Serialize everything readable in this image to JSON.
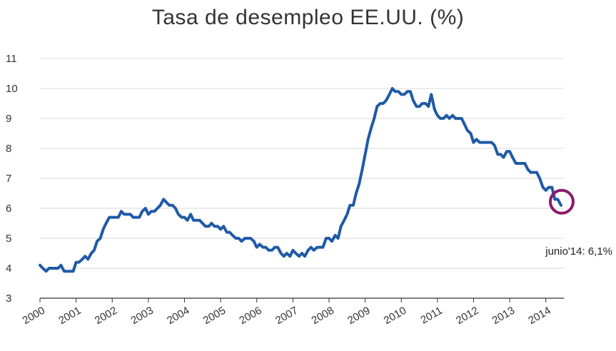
{
  "chart_data": {
    "type": "line",
    "title": "Tasa de desempleo EE.UU. (%)",
    "xlabel": "",
    "ylabel": "",
    "ylim": [
      3,
      11
    ],
    "xlim": [
      2000.0,
      2014.5
    ],
    "y_ticks": [
      "3",
      "4",
      "5",
      "6",
      "7",
      "8",
      "9",
      "10",
      "11"
    ],
    "x_ticks": [
      "2000",
      "2001",
      "2002",
      "2003",
      "2004",
      "2005",
      "2006",
      "2007",
      "2008",
      "2009",
      "2010",
      "2011",
      "2012",
      "2013",
      "2014"
    ],
    "grid": true,
    "series": [
      {
        "color": "#1f5aa6",
        "points": [
          [
            2000.0,
            4.1
          ],
          [
            2000.08,
            4.0
          ],
          [
            2000.17,
            3.9
          ],
          [
            2000.25,
            4.0
          ],
          [
            2000.33,
            4.0
          ],
          [
            2000.42,
            4.0
          ],
          [
            2000.5,
            4.0
          ],
          [
            2000.58,
            4.1
          ],
          [
            2000.67,
            3.9
          ],
          [
            2000.75,
            3.9
          ],
          [
            2000.83,
            3.9
          ],
          [
            2000.92,
            3.9
          ],
          [
            2001.0,
            4.2
          ],
          [
            2001.08,
            4.2
          ],
          [
            2001.17,
            4.3
          ],
          [
            2001.25,
            4.4
          ],
          [
            2001.33,
            4.3
          ],
          [
            2001.42,
            4.5
          ],
          [
            2001.5,
            4.6
          ],
          [
            2001.58,
            4.9
          ],
          [
            2001.67,
            5.0
          ],
          [
            2001.75,
            5.3
          ],
          [
            2001.83,
            5.5
          ],
          [
            2001.92,
            5.7
          ],
          [
            2002.0,
            5.7
          ],
          [
            2002.08,
            5.7
          ],
          [
            2002.17,
            5.7
          ],
          [
            2002.25,
            5.9
          ],
          [
            2002.33,
            5.8
          ],
          [
            2002.42,
            5.8
          ],
          [
            2002.5,
            5.8
          ],
          [
            2002.58,
            5.7
          ],
          [
            2002.67,
            5.7
          ],
          [
            2002.75,
            5.7
          ],
          [
            2002.83,
            5.9
          ],
          [
            2002.92,
            6.0
          ],
          [
            2003.0,
            5.8
          ],
          [
            2003.08,
            5.9
          ],
          [
            2003.17,
            5.9
          ],
          [
            2003.25,
            6.0
          ],
          [
            2003.33,
            6.1
          ],
          [
            2003.42,
            6.3
          ],
          [
            2003.5,
            6.2
          ],
          [
            2003.58,
            6.1
          ],
          [
            2003.67,
            6.1
          ],
          [
            2003.75,
            6.0
          ],
          [
            2003.83,
            5.8
          ],
          [
            2003.92,
            5.7
          ],
          [
            2004.0,
            5.7
          ],
          [
            2004.08,
            5.6
          ],
          [
            2004.17,
            5.8
          ],
          [
            2004.25,
            5.6
          ],
          [
            2004.33,
            5.6
          ],
          [
            2004.42,
            5.6
          ],
          [
            2004.5,
            5.5
          ],
          [
            2004.58,
            5.4
          ],
          [
            2004.67,
            5.4
          ],
          [
            2004.75,
            5.5
          ],
          [
            2004.83,
            5.4
          ],
          [
            2004.92,
            5.4
          ],
          [
            2005.0,
            5.3
          ],
          [
            2005.08,
            5.4
          ],
          [
            2005.17,
            5.2
          ],
          [
            2005.25,
            5.2
          ],
          [
            2005.33,
            5.1
          ],
          [
            2005.42,
            5.0
          ],
          [
            2005.5,
            5.0
          ],
          [
            2005.58,
            4.9
          ],
          [
            2005.67,
            5.0
          ],
          [
            2005.75,
            5.0
          ],
          [
            2005.83,
            5.0
          ],
          [
            2005.92,
            4.9
          ],
          [
            2006.0,
            4.7
          ],
          [
            2006.08,
            4.8
          ],
          [
            2006.17,
            4.7
          ],
          [
            2006.25,
            4.7
          ],
          [
            2006.33,
            4.6
          ],
          [
            2006.42,
            4.6
          ],
          [
            2006.5,
            4.7
          ],
          [
            2006.58,
            4.7
          ],
          [
            2006.67,
            4.5
          ],
          [
            2006.75,
            4.4
          ],
          [
            2006.83,
            4.5
          ],
          [
            2006.92,
            4.4
          ],
          [
            2007.0,
            4.6
          ],
          [
            2007.08,
            4.5
          ],
          [
            2007.17,
            4.4
          ],
          [
            2007.25,
            4.5
          ],
          [
            2007.33,
            4.4
          ],
          [
            2007.42,
            4.6
          ],
          [
            2007.5,
            4.7
          ],
          [
            2007.58,
            4.6
          ],
          [
            2007.67,
            4.7
          ],
          [
            2007.75,
            4.7
          ],
          [
            2007.83,
            4.7
          ],
          [
            2007.92,
            5.0
          ],
          [
            2008.0,
            5.0
          ],
          [
            2008.08,
            4.9
          ],
          [
            2008.17,
            5.1
          ],
          [
            2008.25,
            5.0
          ],
          [
            2008.33,
            5.4
          ],
          [
            2008.42,
            5.6
          ],
          [
            2008.5,
            5.8
          ],
          [
            2008.58,
            6.1
          ],
          [
            2008.67,
            6.1
          ],
          [
            2008.75,
            6.5
          ],
          [
            2008.83,
            6.8
          ],
          [
            2008.92,
            7.3
          ],
          [
            2009.0,
            7.8
          ],
          [
            2009.08,
            8.3
          ],
          [
            2009.17,
            8.7
          ],
          [
            2009.25,
            9.0
          ],
          [
            2009.33,
            9.4
          ],
          [
            2009.42,
            9.5
          ],
          [
            2009.5,
            9.5
          ],
          [
            2009.58,
            9.6
          ],
          [
            2009.67,
            9.8
          ],
          [
            2009.75,
            10.0
          ],
          [
            2009.83,
            9.9
          ],
          [
            2009.92,
            9.9
          ],
          [
            2010.0,
            9.8
          ],
          [
            2010.08,
            9.8
          ],
          [
            2010.17,
            9.9
          ],
          [
            2010.25,
            9.9
          ],
          [
            2010.33,
            9.6
          ],
          [
            2010.42,
            9.4
          ],
          [
            2010.5,
            9.4
          ],
          [
            2010.58,
            9.5
          ],
          [
            2010.67,
            9.5
          ],
          [
            2010.75,
            9.4
          ],
          [
            2010.83,
            9.8
          ],
          [
            2010.92,
            9.3
          ],
          [
            2011.0,
            9.1
          ],
          [
            2011.08,
            9.0
          ],
          [
            2011.17,
            9.0
          ],
          [
            2011.25,
            9.1
          ],
          [
            2011.33,
            9.0
          ],
          [
            2011.42,
            9.1
          ],
          [
            2011.5,
            9.0
          ],
          [
            2011.58,
            9.0
          ],
          [
            2011.67,
            9.0
          ],
          [
            2011.75,
            8.8
          ],
          [
            2011.83,
            8.6
          ],
          [
            2011.92,
            8.5
          ],
          [
            2012.0,
            8.2
          ],
          [
            2012.08,
            8.3
          ],
          [
            2012.17,
            8.2
          ],
          [
            2012.25,
            8.2
          ],
          [
            2012.33,
            8.2
          ],
          [
            2012.42,
            8.2
          ],
          [
            2012.5,
            8.2
          ],
          [
            2012.58,
            8.1
          ],
          [
            2012.67,
            7.8
          ],
          [
            2012.75,
            7.8
          ],
          [
            2012.83,
            7.7
          ],
          [
            2012.92,
            7.9
          ],
          [
            2013.0,
            7.9
          ],
          [
            2013.08,
            7.7
          ],
          [
            2013.17,
            7.5
          ],
          [
            2013.25,
            7.5
          ],
          [
            2013.33,
            7.5
          ],
          [
            2013.42,
            7.5
          ],
          [
            2013.5,
            7.3
          ],
          [
            2013.58,
            7.2
          ],
          [
            2013.67,
            7.2
          ],
          [
            2013.75,
            7.2
          ],
          [
            2013.83,
            7.0
          ],
          [
            2013.92,
            6.7
          ],
          [
            2014.0,
            6.6
          ],
          [
            2014.08,
            6.7
          ],
          [
            2014.17,
            6.7
          ],
          [
            2014.25,
            6.3
          ],
          [
            2014.33,
            6.3
          ],
          [
            2014.42,
            6.1
          ]
        ]
      }
    ],
    "annotation": {
      "text": "junio'14: 6,1%",
      "x": 2014.42,
      "y": 6.1,
      "marker_color": "#8a1a6e"
    }
  }
}
